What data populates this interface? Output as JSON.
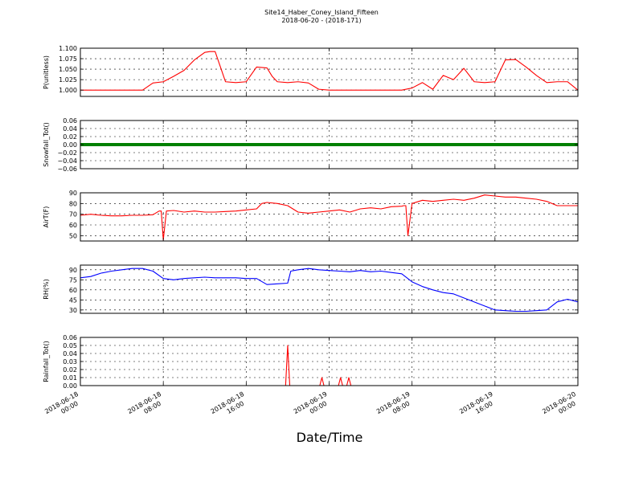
{
  "figure": {
    "title_line1": "Site14_Haber_Coney_Island_Fifteen",
    "title_line2": "2018-06-20 - (2018-171)",
    "xlabel": "Date/Time"
  },
  "chart_data": [
    {
      "type": "line",
      "name": "pressure",
      "ylabel": "P(unitless)",
      "ylim": [
        0.985,
        1.1
      ],
      "yticks": [
        1.0,
        1.025,
        1.05,
        1.075,
        1.1
      ],
      "ytick_labels": [
        "1.000",
        "1.025",
        "1.050",
        "1.075",
        "1.100"
      ],
      "color": "#ff0000",
      "grid": true,
      "x_hours": [
        0,
        2,
        4,
        6,
        7,
        8,
        9,
        10,
        11,
        12,
        12.5,
        13,
        14,
        15,
        16,
        17,
        18,
        18.5,
        19,
        20,
        21,
        22,
        23,
        24,
        25,
        26,
        27,
        28,
        29,
        30,
        31,
        32,
        33,
        34,
        35,
        36,
        37,
        38,
        39,
        40,
        41,
        42,
        43,
        44,
        45,
        46,
        47,
        48
      ],
      "values": [
        1.0,
        1.0,
        1.0,
        1.0,
        1.017,
        1.02,
        1.033,
        1.047,
        1.072,
        1.09,
        1.092,
        1.092,
        1.02,
        1.018,
        1.02,
        1.055,
        1.053,
        1.033,
        1.02,
        1.018,
        1.02,
        1.017,
        1.002,
        1.0,
        1.0,
        1.0,
        1.0,
        1.0,
        1.0,
        1.0,
        1.0,
        1.005,
        1.018,
        1.002,
        1.035,
        1.025,
        1.052,
        1.02,
        1.018,
        1.02,
        1.072,
        1.073,
        1.055,
        1.035,
        1.018,
        1.02,
        1.02,
        1.0
      ]
    },
    {
      "type": "line",
      "name": "snowfall",
      "ylabel": "Snowfall_Tot()",
      "ylim": [
        -0.06,
        0.06
      ],
      "yticks": [
        -0.06,
        -0.04,
        -0.02,
        0.0,
        0.02,
        0.04,
        0.06
      ],
      "ytick_labels": [
        "−0.06",
        "−0.04",
        "−0.02",
        "0.00",
        "0.02",
        "0.04",
        "0.06"
      ],
      "color": "#008000",
      "grid": true,
      "x_hours": [
        0,
        48
      ],
      "values": [
        0.0,
        0.0
      ]
    },
    {
      "type": "line",
      "name": "air-temperature",
      "ylabel": "AirT(F)",
      "ylim": [
        45,
        90
      ],
      "yticks": [
        50,
        60,
        70,
        80,
        90
      ],
      "ytick_labels": [
        "50",
        "60",
        "70",
        "80",
        "90"
      ],
      "color": "#ff0000",
      "grid": true,
      "x_hours": [
        0,
        1,
        2,
        3,
        4,
        5,
        6,
        7,
        7.6,
        7.8,
        8.0,
        8.3,
        9,
        10,
        11,
        12,
        13,
        14,
        15,
        16,
        17,
        17.5,
        18,
        19,
        20,
        21,
        22,
        23,
        24,
        25,
        26,
        27,
        28,
        29,
        30,
        31,
        31.2,
        31.4,
        31.6,
        32,
        33,
        34,
        35,
        36,
        37,
        38,
        39,
        40,
        41,
        42,
        43,
        44,
        45,
        46,
        47,
        48
      ],
      "values": [
        69,
        70,
        69,
        68.5,
        68.5,
        69,
        69,
        69.5,
        73,
        73,
        46,
        73,
        73.5,
        72,
        73,
        72,
        72,
        72.5,
        73,
        74,
        75,
        80,
        81,
        80,
        78,
        72,
        71,
        72,
        73,
        74,
        72,
        75,
        76,
        75,
        77,
        77.5,
        78,
        78,
        50,
        80,
        83,
        82,
        83,
        84,
        83,
        85,
        88,
        87,
        86,
        86,
        85,
        84,
        82,
        78,
        78,
        78
      ]
    },
    {
      "type": "line",
      "name": "relative-humidity",
      "ylabel": "RH(%)",
      "ylim": [
        25,
        97
      ],
      "yticks": [
        30,
        45,
        60,
        75,
        90
      ],
      "ytick_labels": [
        "30",
        "45",
        "60",
        "75",
        "90"
      ],
      "color": "#0000ff",
      "grid": true,
      "x_hours": [
        0,
        1,
        2,
        3,
        4,
        5,
        6,
        7,
        8,
        9,
        10,
        11,
        12,
        13,
        14,
        15,
        16,
        17,
        18,
        19,
        20,
        20.3,
        21,
        22,
        23,
        24,
        25,
        26,
        27,
        28,
        29,
        30,
        31,
        32,
        33,
        34,
        35,
        36,
        37,
        38,
        39,
        40,
        41,
        42,
        43,
        44,
        45,
        46,
        47,
        48
      ],
      "values": [
        78,
        80,
        85,
        88,
        90,
        92,
        92,
        88,
        77,
        75,
        77,
        78,
        79,
        78,
        78,
        78,
        77,
        77,
        68,
        69,
        70,
        88,
        90,
        92,
        90,
        89,
        88,
        87,
        89,
        87,
        88,
        86,
        84,
        72,
        65,
        60,
        56,
        54,
        48,
        42,
        36,
        30,
        29,
        28,
        28,
        29,
        30,
        42,
        46,
        42
      ]
    },
    {
      "type": "line",
      "name": "rainfall",
      "ylabel": "Rainfall_Tot()",
      "ylim": [
        0,
        0.06
      ],
      "yticks": [
        0.0,
        0.01,
        0.02,
        0.03,
        0.04,
        0.05,
        0.06
      ],
      "ytick_labels": [
        "0.00",
        "0.01",
        "0.02",
        "0.03",
        "0.04",
        "0.05",
        "0.06"
      ],
      "color": "#ff0000",
      "grid": true,
      "x_hours": [
        0,
        19.8,
        20.0,
        20.2,
        23.1,
        23.3,
        23.5,
        24.9,
        25.1,
        25.3,
        25.7,
        25.9,
        26.1,
        48
      ],
      "values": [
        0,
        0,
        0.05,
        0,
        0,
        0.01,
        0,
        0,
        0.01,
        0,
        0,
        0.01,
        0,
        0
      ]
    }
  ],
  "x_axis": {
    "range_hours": [
      0,
      48
    ],
    "ticks": [
      {
        "hour": 0,
        "line1": "2018-06-18",
        "line2": "00:00"
      },
      {
        "hour": 8,
        "line1": "2018-06-18",
        "line2": "08:00"
      },
      {
        "hour": 16,
        "line1": "2018-06-18",
        "line2": "16:00"
      },
      {
        "hour": 24,
        "line1": "2018-06-19",
        "line2": "00:00"
      },
      {
        "hour": 32,
        "line1": "2018-06-19",
        "line2": "08:00"
      },
      {
        "hour": 40,
        "line1": "2018-06-19",
        "line2": "16:00"
      },
      {
        "hour": 48,
        "line1": "2018-06-20",
        "line2": "00:00"
      }
    ]
  }
}
